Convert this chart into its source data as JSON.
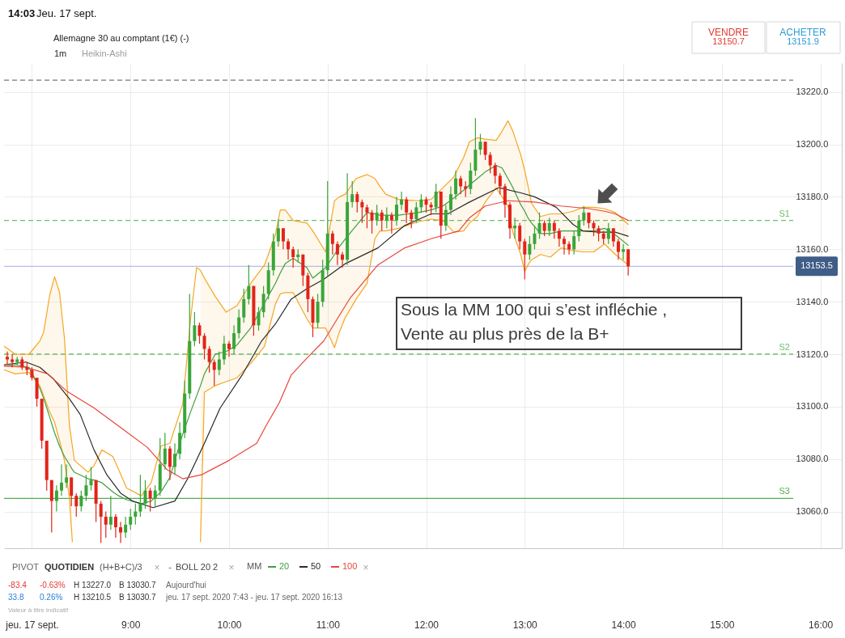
{
  "chart_data": {
    "type": "candlestick",
    "title": "Allemagne 30 au comptant (1€) (-)",
    "subtitle": "1m",
    "legend_title": "MM",
    "legend": "bottom left",
    "grid": true,
    "xlim": [
      7.717,
      16.217
    ],
    "xticks": [
      {
        "value": 8,
        "label": "jeu. 17 sept."
      },
      {
        "value": 9,
        "label": "9:00"
      },
      {
        "value": 10,
        "label": "10:00"
      },
      {
        "value": 11,
        "label": "11:00"
      },
      {
        "value": 12,
        "label": "12:00"
      },
      {
        "value": 13,
        "label": "13:00"
      },
      {
        "value": 14,
        "label": "14:00"
      },
      {
        "value": 15,
        "label": "15:00"
      },
      {
        "value": 16,
        "label": "16:00"
      }
    ],
    "ylim": [
      13046,
      13231
    ],
    "yticks": [
      {
        "value": 13060,
        "label": "13060.0"
      },
      {
        "value": 13080,
        "label": "13080.0"
      },
      {
        "value": 13100,
        "label": "13100.0"
      },
      {
        "value": 13120,
        "label": "13120.0"
      },
      {
        "value": 13140,
        "label": "13140.0"
      },
      {
        "value": 13160,
        "label": "13160.0"
      },
      {
        "value": 13180,
        "label": "13180.0"
      },
      {
        "value": 13200,
        "label": "13200.0"
      },
      {
        "value": 13220,
        "label": "13220.0"
      }
    ],
    "x": [
      7.75,
      7.8,
      7.85,
      7.9,
      7.95,
      8,
      8.05,
      8.1,
      8.15,
      8.2,
      8.25,
      8.3,
      8.35,
      8.4,
      8.45,
      8.5,
      8.55,
      8.6,
      8.65,
      8.7,
      8.75,
      8.8,
      8.85,
      8.9,
      8.95,
      9,
      9.05,
      9.1,
      9.15,
      9.2,
      9.25,
      9.3,
      9.35,
      9.4,
      9.45,
      9.5,
      9.55,
      9.6,
      9.65,
      9.7,
      9.75,
      9.8,
      9.85,
      9.9,
      9.95,
      10,
      10.05,
      10.1,
      10.15,
      10.2,
      10.25,
      10.3,
      10.35,
      10.4,
      10.45,
      10.5,
      10.55,
      10.6,
      10.65,
      10.7,
      10.75,
      10.8,
      10.85,
      10.9,
      10.95,
      11,
      11.05,
      11.1,
      11.15,
      11.2,
      11.25,
      11.3,
      11.35,
      11.4,
      11.45,
      11.5,
      11.55,
      11.6,
      11.65,
      11.7,
      11.75,
      11.8,
      11.85,
      11.9,
      11.95,
      12,
      12.05,
      12.1,
      12.15,
      12.2,
      12.25,
      12.3,
      12.35,
      12.4,
      12.45,
      12.5,
      12.55,
      12.6,
      12.65,
      12.7,
      12.75,
      12.8,
      12.85,
      12.9,
      12.95,
      13,
      13.05,
      13.1,
      13.15,
      13.2,
      13.25,
      13.3,
      13.35,
      13.4,
      13.45,
      13.5,
      13.55,
      13.6,
      13.65,
      13.7,
      13.75,
      13.8,
      13.85,
      13.9,
      13.95,
      14,
      14.05
    ],
    "ohlc": [
      [
        13119,
        13121,
        13116,
        13118
      ],
      [
        13118,
        13120,
        13115,
        13117
      ],
      [
        13117,
        13119,
        13116,
        13118
      ],
      [
        13118,
        13119,
        13114,
        13115
      ],
      [
        13115,
        13117,
        13112,
        13114
      ],
      [
        13114,
        13115,
        13110,
        13111
      ],
      [
        13111,
        13111,
        13100,
        13103
      ],
      [
        13103,
        13103,
        13084,
        13087
      ],
      [
        13087,
        13087,
        13068,
        13072
      ],
      [
        13072,
        13072,
        13052,
        13064
      ],
      [
        13064,
        13070,
        13060,
        13068
      ],
      [
        13068,
        13078,
        13066,
        13071
      ],
      [
        13071,
        13078,
        13069,
        13073
      ],
      [
        13073,
        13073,
        13062,
        13066
      ],
      [
        13066,
        13067,
        13058,
        13062
      ],
      [
        13062,
        13068,
        13060,
        13066
      ],
      [
        13066,
        13074,
        13064,
        13070
      ],
      [
        13070,
        13077,
        13068,
        13072
      ],
      [
        13072,
        13072,
        13056,
        13063
      ],
      [
        13063,
        13064,
        13048,
        13058
      ],
      [
        13058,
        13060,
        13050,
        13055
      ],
      [
        13055,
        13066,
        13053,
        13058
      ],
      [
        13058,
        13059,
        13050,
        13054
      ],
      [
        13054,
        13056,
        13048,
        13052
      ],
      [
        13052,
        13058,
        13050,
        13055
      ],
      [
        13055,
        13061,
        13053,
        13058
      ],
      [
        13058,
        13063,
        13055,
        13060
      ],
      [
        13060,
        13074,
        13058,
        13063
      ],
      [
        13063,
        13072,
        13061,
        13068
      ],
      [
        13068,
        13069,
        13060,
        13065
      ],
      [
        13065,
        13070,
        13062,
        13068
      ],
      [
        13068,
        13088,
        13066,
        13078
      ],
      [
        13078,
        13090,
        13076,
        13084
      ],
      [
        13084,
        13085,
        13072,
        13077
      ],
      [
        13077,
        13086,
        13074,
        13082
      ],
      [
        13082,
        13094,
        13080,
        13090
      ],
      [
        13090,
        13110,
        13088,
        13105
      ],
      [
        13105,
        13143,
        13103,
        13125
      ],
      [
        13125,
        13136,
        13123,
        13131
      ],
      [
        13131,
        13132,
        13124,
        13127
      ],
      [
        13127,
        13128,
        13118,
        13122
      ],
      [
        13122,
        13123,
        13113,
        13117
      ],
      [
        13117,
        13118,
        13108,
        13114
      ],
      [
        13114,
        13121,
        13112,
        13118
      ],
      [
        13118,
        13127,
        13116,
        13124
      ],
      [
        13124,
        13125,
        13119,
        13122
      ],
      [
        13122,
        13131,
        13120,
        13128
      ],
      [
        13128,
        13137,
        13126,
        13134
      ],
      [
        13134,
        13145,
        13132,
        13141
      ],
      [
        13141,
        13154,
        13139,
        13146
      ],
      [
        13146,
        13146,
        13127,
        13131
      ],
      [
        13131,
        13138,
        13129,
        13136
      ],
      [
        13136,
        13146,
        13134,
        13143
      ],
      [
        13143,
        13155,
        13141,
        13152
      ],
      [
        13152,
        13166,
        13150,
        13163
      ],
      [
        13163,
        13171.5,
        13161,
        13168
      ],
      [
        13168,
        13168,
        13160,
        13163
      ],
      [
        13163,
        13164,
        13156,
        13160
      ],
      [
        13160,
        13161,
        13153,
        13157
      ],
      [
        13157,
        13160,
        13155,
        13158
      ],
      [
        13158,
        13158,
        13146,
        13150
      ],
      [
        13150,
        13151,
        13136,
        13141
      ],
      [
        13141,
        13142,
        13126.5,
        13132
      ],
      [
        13132,
        13143,
        13130,
        13140
      ],
      [
        13140,
        13156,
        13138,
        13152
      ],
      [
        13152,
        13186,
        13150,
        13166
      ],
      [
        13166,
        13167,
        13158,
        13162
      ],
      [
        13162,
        13163,
        13154,
        13158
      ],
      [
        13158,
        13159,
        13153,
        13156
      ],
      [
        13156,
        13189,
        13154,
        13178
      ],
      [
        13178,
        13186,
        13176,
        13181
      ],
      [
        13181,
        13182,
        13174,
        13178
      ],
      [
        13178,
        13179,
        13170,
        13176
      ],
      [
        13176,
        13177,
        13168,
        13174
      ],
      [
        13174,
        13175,
        13166,
        13171
      ],
      [
        13171,
        13177,
        13169,
        13174
      ],
      [
        13174,
        13175,
        13167,
        13171
      ],
      [
        13171,
        13176,
        13168,
        13173
      ],
      [
        13173,
        13174,
        13166,
        13171
      ],
      [
        13171,
        13180,
        13169,
        13177
      ],
      [
        13177,
        13182,
        13175,
        13179
      ],
      [
        13179,
        13180,
        13170,
        13174
      ],
      [
        13174,
        13175,
        13168,
        13171.5
      ],
      [
        13171.5,
        13178,
        13170,
        13176
      ],
      [
        13176,
        13181,
        13174,
        13179
      ],
      [
        13179,
        13180,
        13174,
        13177
      ],
      [
        13177,
        13178,
        13173,
        13176
      ],
      [
        13176,
        13185,
        13174,
        13182
      ],
      [
        13182,
        13182,
        13164,
        13169
      ],
      [
        13169,
        13177,
        13167,
        13175
      ],
      [
        13175,
        13184,
        13173,
        13181
      ],
      [
        13181,
        13190,
        13179,
        13187
      ],
      [
        13187,
        13188,
        13181,
        13184
      ],
      [
        13184,
        13186,
        13180,
        13183
      ],
      [
        13183,
        13193,
        13181,
        13190
      ],
      [
        13190,
        13210,
        13188,
        13198
      ],
      [
        13198,
        13204,
        13196,
        13201
      ],
      [
        13201,
        13201,
        13194,
        13196
      ],
      [
        13196,
        13197,
        13189,
        13192
      ],
      [
        13192,
        13193,
        13185,
        13188
      ],
      [
        13188,
        13189,
        13181,
        13184
      ],
      [
        13184,
        13185,
        13172,
        13177
      ],
      [
        13177,
        13178,
        13164,
        13168
      ],
      [
        13168,
        13172,
        13164,
        13169
      ],
      [
        13169,
        13170,
        13160,
        13163
      ],
      [
        13163,
        13164,
        13148.5,
        13158
      ],
      [
        13158,
        13165,
        13156,
        13162
      ],
      [
        13162,
        13169,
        13160,
        13166
      ],
      [
        13166,
        13174,
        13164,
        13170
      ],
      [
        13170,
        13171,
        13165,
        13167
      ],
      [
        13167,
        13172,
        13165,
        13170
      ],
      [
        13170,
        13171,
        13164,
        13167
      ],
      [
        13167,
        13168,
        13161,
        13164
      ],
      [
        13164,
        13165,
        13158,
        13162
      ],
      [
        13162,
        13163,
        13158,
        13160
      ],
      [
        13160,
        13167,
        13158,
        13165
      ],
      [
        13165,
        13173,
        13163,
        13171
      ],
      [
        13171,
        13176.5,
        13169,
        13174
      ],
      [
        13174,
        13174,
        13168,
        13170
      ],
      [
        13170,
        13171,
        13165,
        13168
      ],
      [
        13168,
        13169,
        13163,
        13166
      ],
      [
        13166,
        13167,
        13162,
        13164
      ],
      [
        13164,
        13170,
        13162,
        13168
      ],
      [
        13168,
        13168,
        13161,
        13163
      ],
      [
        13163,
        13164,
        13156,
        13159
      ],
      [
        13159,
        13162,
        13156,
        13160
      ],
      [
        13160,
        13160,
        13150,
        13153.5
      ]
    ],
    "colors": [
      "#e2231a",
      "#e2231a",
      "#3aa53a",
      "#e2231a",
      "#e2231a",
      "#e2231a",
      "#e2231a",
      "#e2231a",
      "#e2231a",
      "#e2231a",
      "#3aa53a",
      "#3aa53a",
      "#3aa53a",
      "#e2231a",
      "#e2231a",
      "#3aa53a",
      "#3aa53a",
      "#3aa53a",
      "#e2231a",
      "#e2231a",
      "#e2231a",
      "#3aa53a",
      "#e2231a",
      "#e2231a",
      "#3aa53a",
      "#3aa53a",
      "#3aa53a",
      "#3aa53a",
      "#3aa53a",
      "#e2231a",
      "#3aa53a",
      "#3aa53a",
      "#3aa53a",
      "#e2231a",
      "#3aa53a",
      "#3aa53a",
      "#3aa53a",
      "#3aa53a",
      "#3aa53a",
      "#e2231a",
      "#e2231a",
      "#e2231a",
      "#e2231a",
      "#3aa53a",
      "#3aa53a",
      "#e2231a",
      "#3aa53a",
      "#3aa53a",
      "#3aa53a",
      "#3aa53a",
      "#e2231a",
      "#3aa53a",
      "#3aa53a",
      "#3aa53a",
      "#3aa53a",
      "#3aa53a",
      "#e2231a",
      "#e2231a",
      "#e2231a",
      "#3aa53a",
      "#e2231a",
      "#e2231a",
      "#e2231a",
      "#3aa53a",
      "#3aa53a",
      "#3aa53a",
      "#e2231a",
      "#e2231a",
      "#e2231a",
      "#3aa53a",
      "#3aa53a",
      "#e2231a",
      "#e2231a",
      "#e2231a",
      "#e2231a",
      "#3aa53a",
      "#e2231a",
      "#3aa53a",
      "#e2231a",
      "#3aa53a",
      "#3aa53a",
      "#e2231a",
      "#e2231a",
      "#3aa53a",
      "#3aa53a",
      "#e2231a",
      "#e2231a",
      "#3aa53a",
      "#e2231a",
      "#3aa53a",
      "#3aa53a",
      "#3aa53a",
      "#e2231a",
      "#e2231a",
      "#3aa53a",
      "#3aa53a",
      "#3aa53a",
      "#e2231a",
      "#e2231a",
      "#e2231a",
      "#e2231a",
      "#e2231a",
      "#e2231a",
      "#3aa53a",
      "#e2231a",
      "#e2231a",
      "#3aa53a",
      "#3aa53a",
      "#3aa53a",
      "#e2231a",
      "#3aa53a",
      "#e2231a",
      "#e2231a",
      "#e2231a",
      "#e2231a",
      "#3aa53a",
      "#3aa53a",
      "#3aa53a",
      "#e2231a",
      "#e2231a",
      "#e2231a",
      "#e2231a",
      "#3aa53a",
      "#e2231a",
      "#e2231a",
      "#3aa53a",
      "#e2231a"
    ],
    "series": [
      {
        "name": "20",
        "type": "line",
        "color": "#3f9f3f",
        "x": [
          7.72,
          7.83,
          7.97,
          8.08,
          8.12,
          8.18,
          8.23,
          8.28,
          8.33,
          8.38,
          8.41,
          8.43,
          8.57,
          8.63,
          8.71,
          8.82,
          8.88,
          8.96,
          9.11,
          9.21,
          9.31,
          9.4,
          9.53,
          9.61,
          9.67,
          9.71,
          9.75,
          9.86,
          9.97,
          10.08,
          10.22,
          10.36,
          10.47,
          10.52,
          10.57,
          10.65,
          10.79,
          10.85,
          10.98,
          11.07,
          11.12,
          11.18,
          11.29,
          11.4,
          11.48,
          11.53,
          11.59,
          11.72,
          11.92,
          12.05,
          12.17,
          12.28,
          12.38,
          12.44,
          12.52,
          12.6,
          12.71,
          12.77,
          12.83,
          12.88,
          12.96,
          13.0,
          13.04,
          13.07,
          13.16,
          13.26,
          13.37,
          13.49,
          13.59,
          13.7,
          13.81,
          13.92,
          14.05
        ],
        "values": [
          13115.5,
          13116,
          13115,
          13107,
          13103,
          13096,
          13090,
          13085,
          13081,
          13078,
          13076,
          13075,
          13072.5,
          13072,
          13071,
          13067.5,
          13066,
          13064.5,
          13063,
          13064,
          13067.5,
          13073,
          13089.5,
          13098,
          13104,
          13108,
          13112.5,
          13120,
          13121,
          13123.5,
          13130,
          13139.5,
          13147,
          13151,
          13154.5,
          13156.5,
          13153,
          13149,
          13153,
          13158,
          13161,
          13164,
          13169,
          13174,
          13173.5,
          13173,
          13173,
          13173,
          13174,
          13175,
          13176.5,
          13179.5,
          13182.5,
          13184.5,
          13187,
          13189.5,
          13192,
          13191,
          13187,
          13183.5,
          13177,
          13174.5,
          13171.5,
          13170,
          13166,
          13166,
          13167,
          13167,
          13167,
          13167,
          13168,
          13165.5,
          13161.5
        ],
        "upper": [
          13123,
          13120,
          13120,
          13125,
          13128.5,
          13142.5,
          13149.5,
          13143.5,
          13126,
          13093,
          13085,
          null,
          null,
          null,
          null,
          null,
          null,
          null,
          null,
          null,
          null,
          null,
          null,
          null,
          null,
          13152,
          13149,
          13142,
          13136,
          13138.5,
          13147,
          13154,
          13165.5,
          13175,
          13175,
          13171,
          13170,
          13167,
          13159,
          13178.5,
          13180,
          13181,
          13187,
          13188.5,
          13187,
          13184,
          13181,
          13179,
          13178.5,
          13179,
          13183.5,
          13187.5,
          13195,
          13201,
          13202.5,
          13202,
          13201.5,
          13205,
          13209,
          13205,
          13196,
          13190,
          13183,
          13177.5,
          13172.5,
          13173.5,
          13173.5,
          13174.5,
          13176,
          13176,
          13175.5,
          13174,
          13169.5
        ],
        "lower": [
          13114,
          13112.5,
          13113,
          13108,
          13104,
          13098,
          13094,
          13087,
          13079.5,
          13065,
          13048.5,
          null,
          null,
          null,
          null,
          null,
          null,
          null,
          null,
          null,
          null,
          null,
          null,
          null,
          null,
          13048.5,
          13105.5,
          13108,
          13109.5,
          13111,
          13116.5,
          13123,
          13139,
          13143,
          13143.5,
          13143.5,
          13133.5,
          13130,
          13130,
          13122.5,
          13128.5,
          13134,
          13141,
          13147,
          13164,
          13167,
          13167,
          13168,
          13170.5,
          13171.5,
          13171,
          13166.5,
          13167,
          13170,
          13172.5,
          13178,
          13183.5,
          13180,
          13176.5,
          13166.5,
          13158,
          13151.5,
          13154.5,
          13156,
          13158,
          13157,
          13160.5,
          13159.5,
          13159,
          13159,
          13162,
          13158,
          13154
        ]
      },
      {
        "type": "line",
        "color": "#f5a623",
        "x": [
          7.72,
          7.83,
          7.97,
          8.08,
          8.12,
          8.18,
          8.23,
          8.28,
          8.33,
          8.38,
          8.41,
          8.43,
          8.57,
          8.63,
          8.71,
          8.82,
          8.88,
          8.96,
          9.11,
          9.21,
          9.31,
          9.4,
          9.53,
          9.61,
          9.67,
          9.71,
          9.75,
          9.86,
          9.97,
          10.08,
          10.22,
          10.36,
          10.47,
          10.52,
          10.57,
          10.65,
          10.79,
          10.85,
          10.98,
          11.07,
          11.12,
          11.18,
          11.29,
          11.4,
          11.48,
          11.53,
          11.59,
          11.72,
          11.92,
          12.05,
          12.17,
          12.28,
          12.38,
          12.44,
          12.52,
          12.6,
          12.71,
          12.77,
          12.83,
          12.88,
          12.96,
          13.0,
          13.04,
          13.07,
          13.16,
          13.26,
          13.37,
          13.49,
          13.59,
          13.7,
          13.81,
          13.92,
          14.05
        ],
        "values": [
          13123,
          13120,
          13120,
          13125,
          13128.5,
          13142.5,
          13149.5,
          13143.5,
          13126,
          13093,
          13085,
          13079.5,
          13075,
          13077.5,
          13083.5,
          13081,
          13076,
          13069,
          13066,
          13071,
          13085,
          13086,
          13101,
          13133.5,
          13153,
          13152,
          13149,
          13142,
          13136,
          13138.5,
          13147,
          13154,
          13165.5,
          13175,
          13175,
          13171,
          13170,
          13167,
          13159,
          13178.5,
          13180,
          13181,
          13187,
          13188.5,
          13187,
          13184,
          13181,
          13179,
          13178.5,
          13179,
          13183.5,
          13187.5,
          13195,
          13201,
          13202.5,
          13202,
          13201.5,
          13205,
          13209,
          13205,
          13196,
          13190,
          13183,
          13177.5,
          13172.5,
          13173.5,
          13173.5,
          13174.5,
          13176,
          13176,
          13175.5,
          13174,
          13169.5
        ]
      },
      {
        "type": "line",
        "color": "#f5a623",
        "x": [
          7.72,
          7.83,
          7.97,
          8.08,
          8.12,
          8.18,
          8.23,
          8.28,
          8.33,
          8.38,
          8.41,
          8.43,
          8.57,
          8.63,
          8.71,
          8.82,
          8.88,
          8.96,
          9.11,
          9.21,
          9.31,
          9.4,
          9.53,
          9.61,
          9.67,
          9.71,
          9.75,
          9.86,
          9.97,
          10.08,
          10.22,
          10.36,
          10.47,
          10.52,
          10.57,
          10.65,
          10.79,
          10.85,
          10.98,
          11.07,
          11.12,
          11.18,
          11.29,
          11.4,
          11.48,
          11.53,
          11.59,
          11.72,
          11.92,
          12.05,
          12.17,
          12.28,
          12.38,
          12.44,
          12.52,
          12.6,
          12.71,
          12.77,
          12.83,
          12.88,
          12.96,
          13.0,
          13.04,
          13.07,
          13.16,
          13.26,
          13.37,
          13.49,
          13.59,
          13.7,
          13.81,
          13.92,
          14.05
        ],
        "values": [
          13114,
          13112.5,
          13113,
          13108,
          13104,
          13098,
          13094,
          13087,
          13079.5,
          13065,
          13048.5,
          null,
          null,
          null,
          null,
          null,
          null,
          null,
          null,
          null,
          null,
          null,
          null,
          null,
          null,
          13048.5,
          13105.5,
          13108,
          13109.5,
          13111,
          13116.5,
          13123,
          13139,
          13143,
          13143.5,
          13143.5,
          13133.5,
          13130,
          13130,
          13122.5,
          13128.5,
          13134,
          13141,
          13147,
          13164,
          13167,
          13167,
          13168,
          13170.5,
          13171.5,
          13171,
          13166.5,
          13167,
          13170,
          13172.5,
          13178,
          13183.5,
          13180,
          13176.5,
          13166.5,
          13158,
          13151.5,
          13154.5,
          13156,
          13158,
          13157,
          13160.5,
          13159.5,
          13159,
          13159,
          13162,
          13158,
          13154
        ]
      },
      {
        "name": "50",
        "type": "line",
        "color": "#2a2a2a",
        "x": [
          7.72,
          7.94,
          8.08,
          8.22,
          8.38,
          8.49,
          8.63,
          8.76,
          8.9,
          9.02,
          9.23,
          9.45,
          9.58,
          9.75,
          9.91,
          10.14,
          10.33,
          10.47,
          10.63,
          10.79,
          10.96,
          11.18,
          11.51,
          11.78,
          12.05,
          12.22,
          12.44,
          12.74,
          12.96,
          13.1,
          13.32,
          13.49,
          13.59,
          13.76,
          13.92,
          14.05
        ],
        "values": [
          13116,
          13117,
          13115,
          13110.5,
          13103,
          13097,
          13083.5,
          13074,
          13067,
          13064,
          13061.5,
          13064,
          13072.5,
          13086,
          13099.5,
          13112.5,
          13125,
          13131.5,
          13141,
          13145,
          13148.5,
          13154.5,
          13160.5,
          13169,
          13173.5,
          13173.5,
          13178,
          13183.5,
          13181.5,
          13180,
          13176,
          13169.5,
          13167,
          13166.5,
          13166.5,
          13165
        ]
      },
      {
        "name": "100",
        "type": "line",
        "color": "#e8453c",
        "x": [
          7.72,
          7.94,
          8.16,
          8.35,
          8.63,
          8.9,
          9.17,
          9.37,
          9.53,
          9.72,
          10.0,
          10.28,
          10.38,
          10.51,
          10.63,
          10.79,
          10.96,
          11.23,
          11.51,
          11.78,
          12.05,
          12.33,
          12.44,
          12.6,
          12.83,
          13.1,
          13.37,
          13.65,
          13.81,
          13.92,
          14.05
        ],
        "values": [
          13115.5,
          13115,
          13112.5,
          13106,
          13099.5,
          13092,
          13084.5,
          13076,
          13072.5,
          13074,
          13079.5,
          13086,
          13093,
          13101.5,
          13112,
          13118.5,
          13125,
          13141.5,
          13154,
          13160.5,
          13164,
          13167,
          13172,
          13176.5,
          13178.5,
          13178,
          13176.5,
          13175.5,
          13174.5,
          13173.5,
          13171
        ]
      }
    ],
    "ref_lines": [
      {
        "axis": "y",
        "value": 13224.5,
        "color": "#777777",
        "line_style": "dashed"
      },
      {
        "axis": "y",
        "value": 13171,
        "label": "S1",
        "color": "#6cbf6c",
        "line_style": "dashed"
      },
      {
        "axis": "y",
        "value": 13120,
        "label": "S2",
        "color": "#6cbf6c",
        "line_style": "dashed"
      },
      {
        "axis": "y",
        "value": 13065,
        "label": "S3",
        "color": "#4cb04c",
        "line_style": "solid"
      },
      {
        "axis": "y",
        "value": 13153.5,
        "label": "13153.5",
        "color": "#b8bde3",
        "line_style": "solid"
      }
    ],
    "annotations": [
      "14:03",
      "Jeu. 17 sept.",
      "VENDRE",
      "13150.7",
      "ACHETER",
      "13151.9",
      "Heikin-Ashi",
      "Sous la MM 100 qui s’est infléchie ,\nVente au plus près de la B+",
      "PIVOT",
      "QUOTIDIEN",
      "(H+B+C)/3",
      "×",
      "-",
      "BOLL 20 2",
      "×",
      "×",
      "-83.4",
      "-0.63%",
      "H 13227.0",
      "B 13030.7",
      "Aujourd'hui",
      "33.8",
      "0.26%",
      "H 13210.5",
      "B 13030.7",
      "jeu. 17 sept. 2020 7:43 - jeu. 17 sept. 2020 16:13",
      "Valeur à titre indicatif"
    ]
  }
}
